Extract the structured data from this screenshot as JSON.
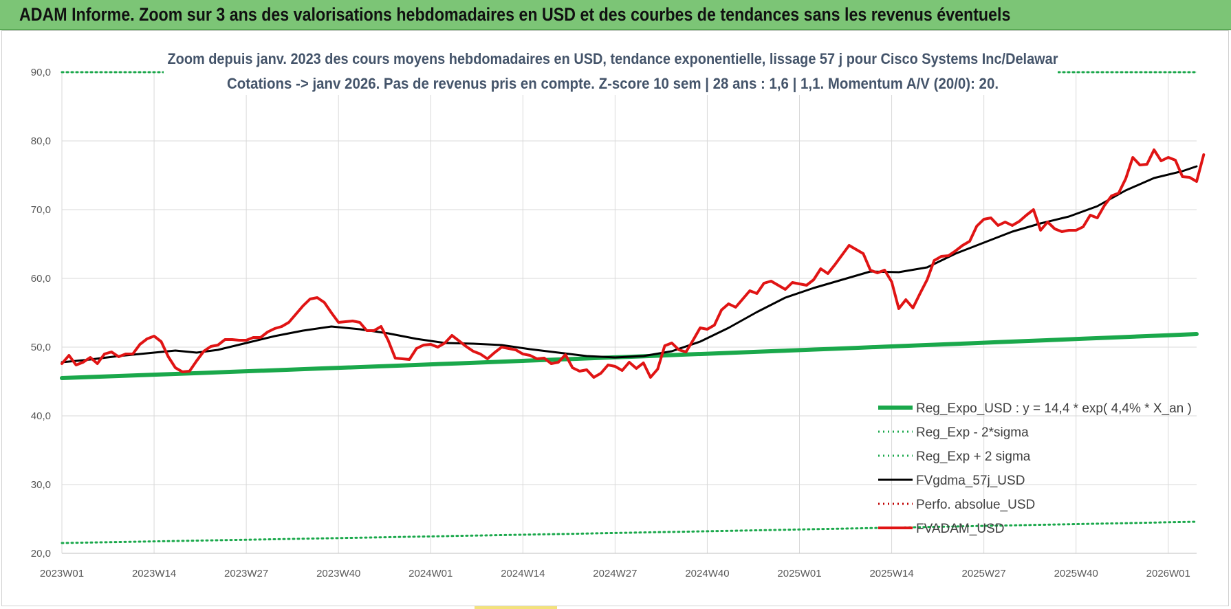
{
  "header": {
    "title": "ADAM Informe. Zoom sur 3 ans des valorisations hebdomadaires en USD et des courbes de tendances sans les revenus éventuels"
  },
  "chart_data": {
    "type": "line",
    "subtitle_line1": "Zoom depuis janv. 2023 des cours moyens hebdomadaires en USD, tendance exponentielle, lissage 57 j pour Cisco Systems Inc/Delawar",
    "subtitle_line2": "Cotations -> janv 2026. Pas de revenus pris en compte. Z-score 10 sem  | 28 ans : 1,6 | 1,1. Momentum A/V (20/0): 20.",
    "ylim": [
      20,
      90
    ],
    "y_ticks": [
      "20,0",
      "30,0",
      "40,0",
      "50,0",
      "60,0",
      "70,0",
      "80,0",
      "90,0"
    ],
    "x_ticks": [
      "2023W01",
      "2023W14",
      "2023W27",
      "2023W40",
      "2024W01",
      "2024W14",
      "2024W27",
      "2024W40",
      "2025W01",
      "2025W14",
      "2025W27",
      "2025W40",
      "2026W01"
    ],
    "x_tick_positions": [
      0,
      13,
      26,
      39,
      52,
      65,
      78,
      91,
      104,
      117,
      130,
      143,
      156
    ],
    "x_range": [
      0,
      160
    ],
    "grid": "vertical and horizontal",
    "legend_position": "bottom-right",
    "colors": {
      "reg_expo": "#1aa84b",
      "sigma": "#1aa84b",
      "fvgdma": "#000000",
      "perfo": "#c00000",
      "fvadam": "#e01414"
    },
    "series": [
      {
        "name": "Reg_Expo_USD : y = 14,4 * exp( 4,4% *  X_an )",
        "style": "thick-solid",
        "points": [
          [
            0,
            45.5
          ],
          [
            160,
            51.9
          ]
        ]
      },
      {
        "name": "Reg_Exp - 2*sigma",
        "style": "dotted",
        "points": [
          [
            0,
            21.5
          ],
          [
            160,
            24.6
          ]
        ]
      },
      {
        "name": "Reg_Exp + 2 sigma",
        "style": "dotted",
        "points": [
          [
            0,
            90.0
          ],
          [
            160,
            90.0
          ]
        ]
      },
      {
        "name": "FVgdma_57j_USD",
        "style": "solid",
        "points": [
          [
            0,
            47.8
          ],
          [
            4,
            48.2
          ],
          [
            8,
            48.7
          ],
          [
            12,
            49.1
          ],
          [
            16,
            49.5
          ],
          [
            19,
            49.2
          ],
          [
            22,
            49.6
          ],
          [
            26,
            50.6
          ],
          [
            30,
            51.6
          ],
          [
            34,
            52.4
          ],
          [
            38,
            53.0
          ],
          [
            42,
            52.6
          ],
          [
            46,
            52.0
          ],
          [
            50,
            51.2
          ],
          [
            54,
            50.6
          ],
          [
            58,
            50.5
          ],
          [
            62,
            50.3
          ],
          [
            66,
            49.7
          ],
          [
            70,
            49.2
          ],
          [
            74,
            48.7
          ],
          [
            78,
            48.5
          ],
          [
            82,
            48.7
          ],
          [
            86,
            49.4
          ],
          [
            90,
            50.8
          ],
          [
            94,
            52.8
          ],
          [
            98,
            55.1
          ],
          [
            102,
            57.2
          ],
          [
            106,
            58.6
          ],
          [
            110,
            59.8
          ],
          [
            114,
            61.0
          ],
          [
            118,
            60.9
          ],
          [
            122,
            61.6
          ],
          [
            126,
            63.6
          ],
          [
            130,
            65.2
          ],
          [
            134,
            66.8
          ],
          [
            138,
            68.0
          ],
          [
            142,
            69.0
          ],
          [
            146,
            70.5
          ],
          [
            150,
            72.8
          ],
          [
            154,
            74.6
          ],
          [
            158,
            75.6
          ],
          [
            160,
            76.3
          ]
        ]
      },
      {
        "name": "Perfo. absolue_USD",
        "style": "dotted",
        "points": []
      },
      {
        "name": "FVADAM_USD",
        "style": "solid",
        "points": [
          [
            0,
            47.6
          ],
          [
            1,
            48.8
          ],
          [
            2,
            47.4
          ],
          [
            3,
            47.8
          ],
          [
            4,
            48.5
          ],
          [
            5,
            47.6
          ],
          [
            6,
            49.0
          ],
          [
            7,
            49.3
          ],
          [
            8,
            48.6
          ],
          [
            9,
            49.0
          ],
          [
            10,
            49.0
          ],
          [
            11,
            50.4
          ],
          [
            12,
            51.2
          ],
          [
            13,
            51.6
          ],
          [
            14,
            50.8
          ],
          [
            15,
            48.6
          ],
          [
            16,
            47.0
          ],
          [
            17,
            46.4
          ],
          [
            18,
            46.5
          ],
          [
            19,
            48.0
          ],
          [
            20,
            49.4
          ],
          [
            21,
            50.1
          ],
          [
            22,
            50.3
          ],
          [
            23,
            51.1
          ],
          [
            24,
            51.1
          ],
          [
            25,
            51.0
          ],
          [
            26,
            51.0
          ],
          [
            27,
            51.4
          ],
          [
            28,
            51.4
          ],
          [
            29,
            52.2
          ],
          [
            30,
            52.7
          ],
          [
            31,
            53.0
          ],
          [
            32,
            53.6
          ],
          [
            33,
            54.8
          ],
          [
            34,
            56.0
          ],
          [
            35,
            57.0
          ],
          [
            36,
            57.2
          ],
          [
            37,
            56.5
          ],
          [
            38,
            55.0
          ],
          [
            39,
            53.6
          ],
          [
            40,
            53.7
          ],
          [
            41,
            53.8
          ],
          [
            42,
            53.6
          ],
          [
            43,
            52.4
          ],
          [
            44,
            52.4
          ],
          [
            45,
            53.0
          ],
          [
            46,
            51.0
          ],
          [
            47,
            48.4
          ],
          [
            48,
            48.3
          ],
          [
            49,
            48.2
          ],
          [
            50,
            49.8
          ],
          [
            51,
            50.3
          ],
          [
            52,
            50.4
          ],
          [
            53,
            50.0
          ],
          [
            54,
            50.6
          ],
          [
            55,
            51.7
          ],
          [
            56,
            50.9
          ],
          [
            57,
            50.1
          ],
          [
            58,
            49.4
          ],
          [
            59,
            49.0
          ],
          [
            60,
            48.3
          ],
          [
            61,
            49.2
          ],
          [
            62,
            50.0
          ],
          [
            63,
            49.8
          ],
          [
            64,
            49.6
          ],
          [
            65,
            49.0
          ],
          [
            66,
            48.8
          ],
          [
            67,
            48.3
          ],
          [
            68,
            48.4
          ],
          [
            69,
            47.6
          ],
          [
            70,
            47.8
          ],
          [
            71,
            48.9
          ],
          [
            72,
            47.0
          ],
          [
            73,
            46.5
          ],
          [
            74,
            46.7
          ],
          [
            75,
            45.6
          ],
          [
            76,
            46.2
          ],
          [
            77,
            47.4
          ],
          [
            78,
            47.2
          ],
          [
            79,
            46.6
          ],
          [
            80,
            47.8
          ],
          [
            81,
            46.9
          ],
          [
            82,
            47.7
          ],
          [
            83,
            45.6
          ],
          [
            84,
            46.8
          ],
          [
            85,
            50.2
          ],
          [
            86,
            50.6
          ],
          [
            87,
            49.6
          ],
          [
            88,
            49.3
          ],
          [
            89,
            51.0
          ],
          [
            90,
            52.8
          ],
          [
            91,
            52.6
          ],
          [
            92,
            53.2
          ],
          [
            93,
            55.4
          ],
          [
            94,
            56.3
          ],
          [
            95,
            55.8
          ],
          [
            96,
            57.0
          ],
          [
            97,
            58.2
          ],
          [
            98,
            57.8
          ],
          [
            99,
            59.3
          ],
          [
            100,
            59.6
          ],
          [
            101,
            59.0
          ],
          [
            102,
            58.4
          ],
          [
            103,
            59.4
          ],
          [
            104,
            59.2
          ],
          [
            105,
            59.0
          ],
          [
            106,
            59.8
          ],
          [
            107,
            61.4
          ],
          [
            108,
            60.7
          ],
          [
            109,
            62.0
          ],
          [
            110,
            63.4
          ],
          [
            111,
            64.8
          ],
          [
            112,
            64.2
          ],
          [
            113,
            63.6
          ],
          [
            114,
            61.2
          ],
          [
            115,
            60.8
          ],
          [
            116,
            61.2
          ],
          [
            117,
            59.5
          ],
          [
            118,
            55.6
          ],
          [
            119,
            56.9
          ],
          [
            120,
            55.7
          ],
          [
            121,
            57.8
          ],
          [
            122,
            59.8
          ],
          [
            123,
            62.6
          ],
          [
            124,
            63.2
          ],
          [
            125,
            63.3
          ],
          [
            126,
            64.0
          ],
          [
            127,
            64.8
          ],
          [
            128,
            65.4
          ],
          [
            129,
            67.6
          ],
          [
            130,
            68.6
          ],
          [
            131,
            68.8
          ],
          [
            132,
            67.7
          ],
          [
            133,
            68.2
          ],
          [
            134,
            67.7
          ],
          [
            135,
            68.3
          ],
          [
            136,
            69.2
          ],
          [
            137,
            70.0
          ],
          [
            138,
            67.0
          ],
          [
            139,
            68.2
          ],
          [
            140,
            67.2
          ],
          [
            141,
            66.8
          ],
          [
            142,
            67.0
          ],
          [
            143,
            67.0
          ],
          [
            144,
            67.5
          ],
          [
            145,
            69.2
          ],
          [
            146,
            68.8
          ],
          [
            147,
            70.6
          ],
          [
            148,
            72.0
          ],
          [
            149,
            72.4
          ],
          [
            150,
            74.5
          ],
          [
            151,
            77.6
          ],
          [
            152,
            76.5
          ],
          [
            153,
            76.6
          ],
          [
            154,
            78.7
          ],
          [
            155,
            77.1
          ],
          [
            156,
            77.6
          ],
          [
            157,
            77.2
          ],
          [
            158,
            74.8
          ],
          [
            159,
            74.7
          ],
          [
            160,
            74.1
          ],
          [
            161,
            78.0
          ]
        ]
      }
    ]
  }
}
